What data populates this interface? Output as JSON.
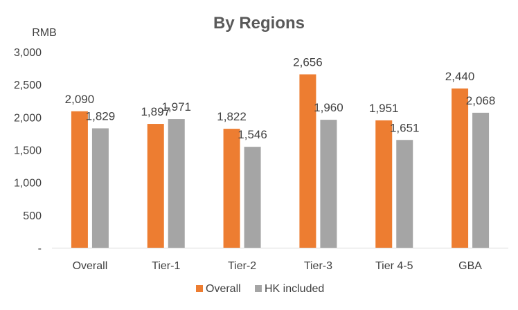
{
  "chart_data": {
    "type": "bar",
    "title": "By Regions",
    "unit_label": "RMB",
    "categories": [
      "Overall",
      "Tier-1",
      "Tier-2",
      "Tier-3",
      "Tier 4-5",
      "GBA"
    ],
    "series": [
      {
        "name": "Overall",
        "color": "#ED7D31",
        "values": [
          2090,
          1897,
          1822,
          2656,
          1951,
          2440
        ],
        "labels": [
          "2,090",
          "1,897",
          "1,822",
          "2,656",
          "1,951",
          "2,440"
        ]
      },
      {
        "name": "HK included",
        "color": "#A5A5A5",
        "values": [
          1829,
          1971,
          1546,
          1960,
          1651,
          2068
        ],
        "labels": [
          "1,829",
          "1,971",
          "1,546",
          "1,960",
          "1,651",
          "2,068"
        ]
      }
    ],
    "ylim": [
      0,
      3000
    ],
    "yticks": [
      0,
      500,
      1000,
      1500,
      2000,
      2500,
      3000
    ],
    "ytick_labels": [
      "-",
      "500",
      "1,000",
      "1,500",
      "2,000",
      "2,500",
      "3,000"
    ],
    "grid": false,
    "legend": "bottom"
  }
}
